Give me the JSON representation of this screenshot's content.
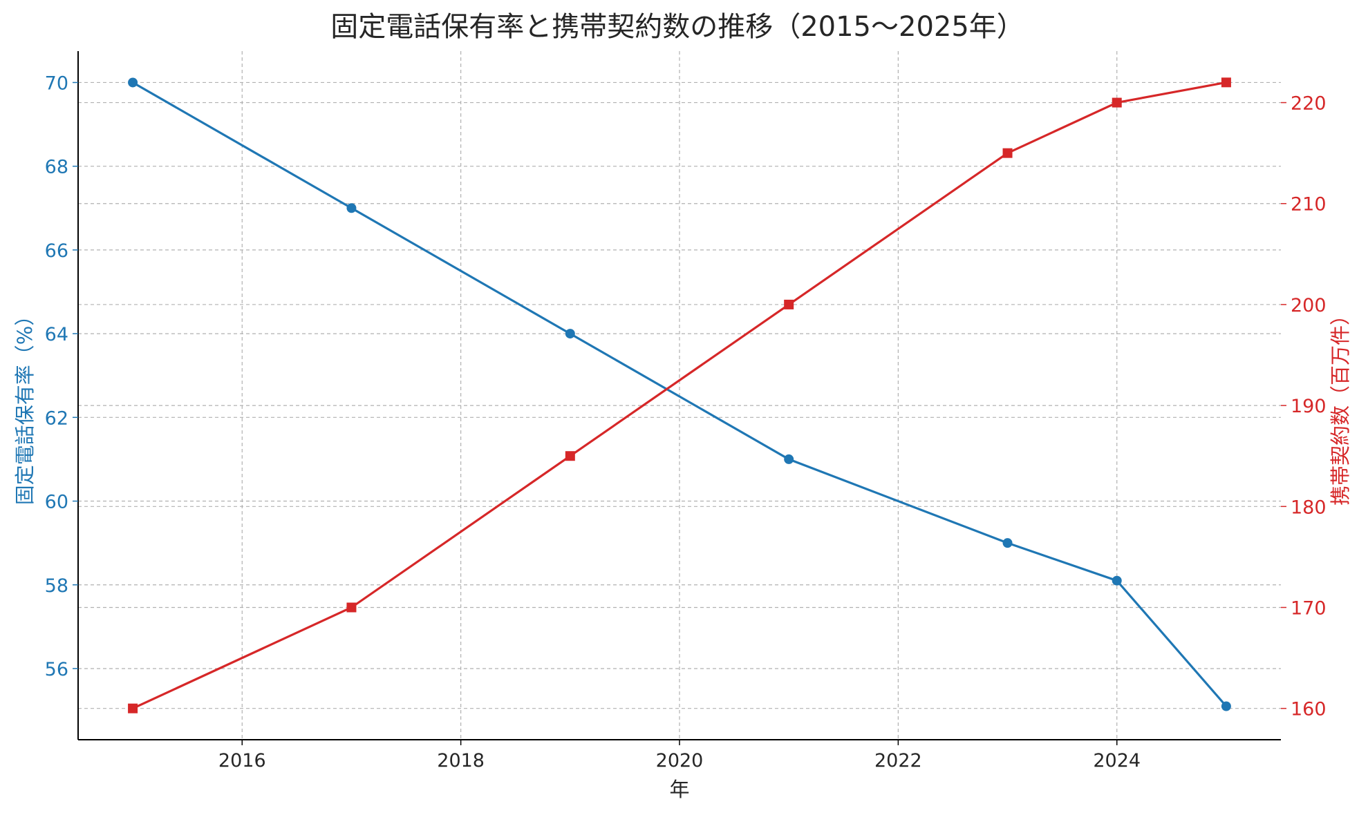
{
  "chart_data": {
    "type": "line",
    "title": "固定電話保有率と携帯契約数の推移（2015〜2025年）",
    "xlabel": "年",
    "ylabel_left": "固定電話保有率（%）",
    "ylabel_right": "携帯契約数（百万件）",
    "x": [
      2015,
      2017,
      2019,
      2021,
      2023,
      2024,
      2025
    ],
    "xlim": [
      2014.5,
      2025.5
    ],
    "x_ticks": [
      2016,
      2018,
      2020,
      2022,
      2024
    ],
    "series": [
      {
        "axis": "left",
        "values": [
          70,
          67,
          64,
          61,
          59,
          58.1,
          55.1
        ],
        "color": "#1f77b4",
        "marker": "circle"
      },
      {
        "axis": "right",
        "values": [
          160,
          170,
          185,
          200,
          215,
          220,
          222
        ],
        "color": "#d62728",
        "marker": "square"
      }
    ],
    "ylim_left": [
      54.3,
      70.75
    ],
    "y_ticks_left": [
      56,
      58,
      60,
      62,
      64,
      66,
      68,
      70
    ],
    "ylim_right": [
      156.9,
      225.1
    ],
    "y_ticks_right": [
      160,
      170,
      180,
      190,
      200,
      210,
      220
    ],
    "grid": true
  }
}
